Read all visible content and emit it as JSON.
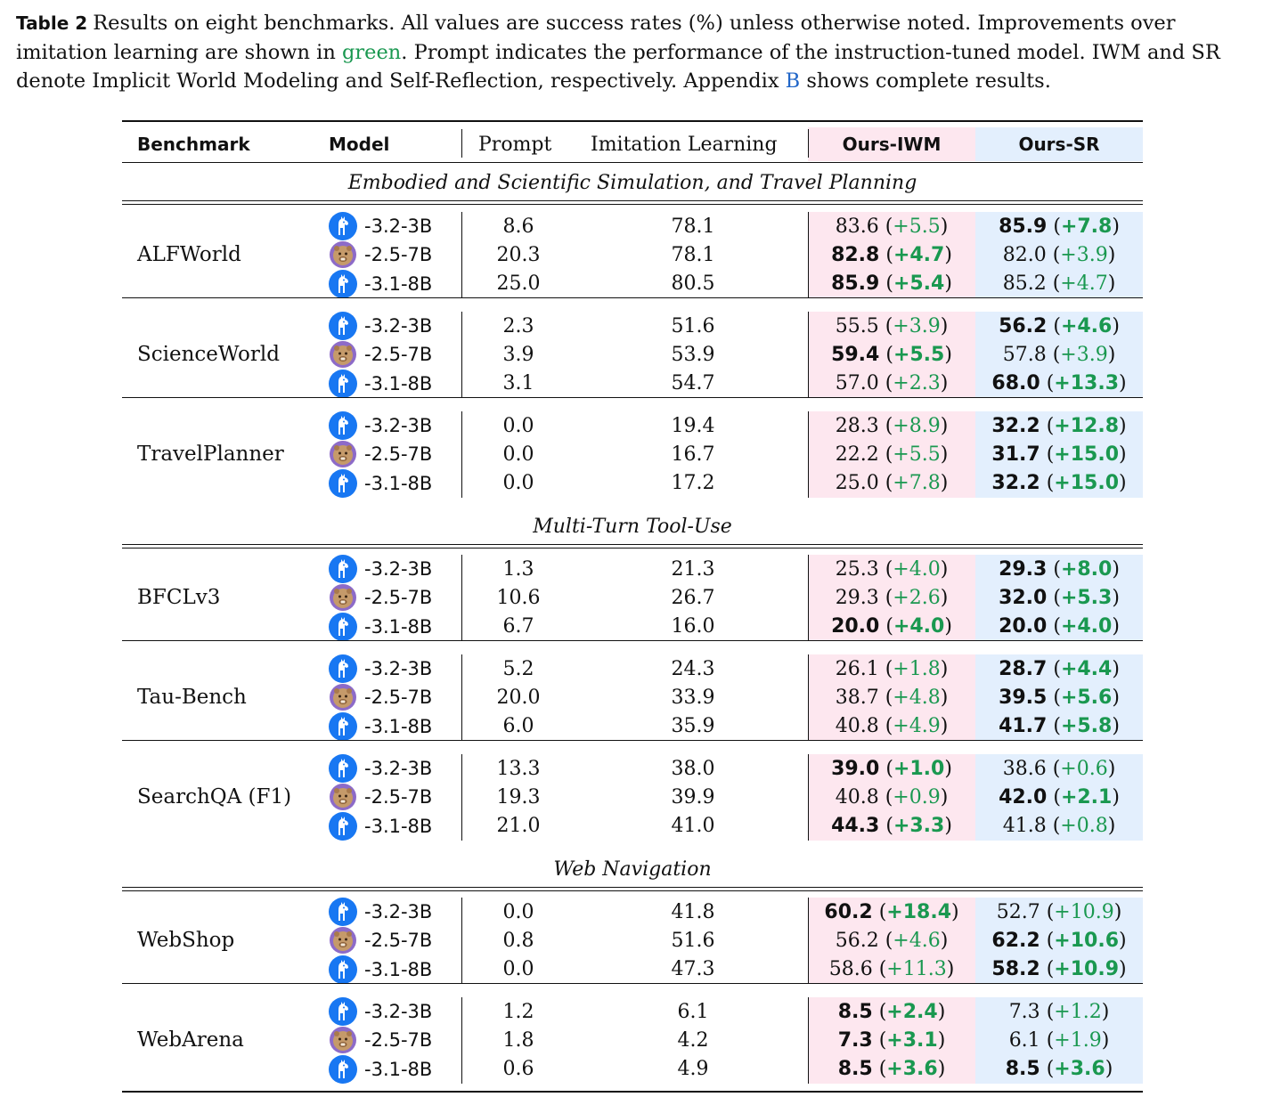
{
  "caption": {
    "label": "Table 2",
    "text_before": "Results on eight benchmarks. All values are success rates (%) unless otherwise noted. Improvements over imitation learning are shown in ",
    "green_word": "green",
    "text_middle": ". Prompt indicates the performance of the instruction-tuned model. IWM and SR denote Implicit World Modeling and Self-Reflection, respectively. Appendix ",
    "appendix_ref": "B",
    "text_after": " shows complete results."
  },
  "colors": {
    "green": "#1a9850",
    "iwm_bg": "#fde7ef",
    "sr_bg": "#e3effd",
    "llama_icon": "#1877f2",
    "qwen_icon": "#8d6bc8"
  },
  "header": {
    "benchmark": "Benchmark",
    "model": "Model",
    "prompt": "Prompt",
    "imitation": "Imitation Learning",
    "iwm": "Ours-IWM",
    "sr": "Ours-SR"
  },
  "sections": [
    {
      "title": "Embodied and Scientific Simulation, and Travel Planning",
      "benchmarks": [
        {
          "name": "ALFWorld",
          "rows": [
            {
              "icon": "llama-icon",
              "model": "-3.2-3B",
              "prompt": "8.6",
              "il": "78.1",
              "iwm": "83.6",
              "iwm_delta": "+5.5",
              "iwm_bold": false,
              "sr": "85.9",
              "sr_delta": "+7.8",
              "sr_bold": true
            },
            {
              "icon": "qwen-icon",
              "model": "-2.5-7B",
              "prompt": "20.3",
              "il": "78.1",
              "iwm": "82.8",
              "iwm_delta": "+4.7",
              "iwm_bold": true,
              "sr": "82.0",
              "sr_delta": "+3.9",
              "sr_bold": false
            },
            {
              "icon": "llama-icon",
              "model": "-3.1-8B",
              "prompt": "25.0",
              "il": "80.5",
              "iwm": "85.9",
              "iwm_delta": "+5.4",
              "iwm_bold": true,
              "sr": "85.2",
              "sr_delta": "+4.7",
              "sr_bold": false
            }
          ]
        },
        {
          "name": "ScienceWorld",
          "rows": [
            {
              "icon": "llama-icon",
              "model": "-3.2-3B",
              "prompt": "2.3",
              "il": "51.6",
              "iwm": "55.5",
              "iwm_delta": "+3.9",
              "iwm_bold": false,
              "sr": "56.2",
              "sr_delta": "+4.6",
              "sr_bold": true
            },
            {
              "icon": "qwen-icon",
              "model": "-2.5-7B",
              "prompt": "3.9",
              "il": "53.9",
              "iwm": "59.4",
              "iwm_delta": "+5.5",
              "iwm_bold": true,
              "sr": "57.8",
              "sr_delta": "+3.9",
              "sr_bold": false
            },
            {
              "icon": "llama-icon",
              "model": "-3.1-8B",
              "prompt": "3.1",
              "il": "54.7",
              "iwm": "57.0",
              "iwm_delta": "+2.3",
              "iwm_bold": false,
              "sr": "68.0",
              "sr_delta": "+13.3",
              "sr_bold": true
            }
          ]
        },
        {
          "name": "TravelPlanner",
          "rows": [
            {
              "icon": "llama-icon",
              "model": "-3.2-3B",
              "prompt": "0.0",
              "il": "19.4",
              "iwm": "28.3",
              "iwm_delta": "+8.9",
              "iwm_bold": false,
              "sr": "32.2",
              "sr_delta": "+12.8",
              "sr_bold": true
            },
            {
              "icon": "qwen-icon",
              "model": "-2.5-7B",
              "prompt": "0.0",
              "il": "16.7",
              "iwm": "22.2",
              "iwm_delta": "+5.5",
              "iwm_bold": false,
              "sr": "31.7",
              "sr_delta": "+15.0",
              "sr_bold": true
            },
            {
              "icon": "llama-icon",
              "model": "-3.1-8B",
              "prompt": "0.0",
              "il": "17.2",
              "iwm": "25.0",
              "iwm_delta": "+7.8",
              "iwm_bold": false,
              "sr": "32.2",
              "sr_delta": "+15.0",
              "sr_bold": true
            }
          ]
        }
      ]
    },
    {
      "title": "Multi-Turn Tool-Use",
      "benchmarks": [
        {
          "name": "BFCLv3",
          "rows": [
            {
              "icon": "llama-icon",
              "model": "-3.2-3B",
              "prompt": "1.3",
              "il": "21.3",
              "iwm": "25.3",
              "iwm_delta": "+4.0",
              "iwm_bold": false,
              "sr": "29.3",
              "sr_delta": "+8.0",
              "sr_bold": true
            },
            {
              "icon": "qwen-icon",
              "model": "-2.5-7B",
              "prompt": "10.6",
              "il": "26.7",
              "iwm": "29.3",
              "iwm_delta": "+2.6",
              "iwm_bold": false,
              "sr": "32.0",
              "sr_delta": "+5.3",
              "sr_bold": true
            },
            {
              "icon": "llama-icon",
              "model": "-3.1-8B",
              "prompt": "6.7",
              "il": "16.0",
              "iwm": "20.0",
              "iwm_delta": "+4.0",
              "iwm_bold": true,
              "sr": "20.0",
              "sr_delta": "+4.0",
              "sr_bold": true
            }
          ]
        },
        {
          "name": "Tau-Bench",
          "rows": [
            {
              "icon": "llama-icon",
              "model": "-3.2-3B",
              "prompt": "5.2",
              "il": "24.3",
              "iwm": "26.1",
              "iwm_delta": "+1.8",
              "iwm_bold": false,
              "sr": "28.7",
              "sr_delta": "+4.4",
              "sr_bold": true
            },
            {
              "icon": "qwen-icon",
              "model": "-2.5-7B",
              "prompt": "20.0",
              "il": "33.9",
              "iwm": "38.7",
              "iwm_delta": "+4.8",
              "iwm_bold": false,
              "sr": "39.5",
              "sr_delta": "+5.6",
              "sr_bold": true
            },
            {
              "icon": "llama-icon",
              "model": "-3.1-8B",
              "prompt": "6.0",
              "il": "35.9",
              "iwm": "40.8",
              "iwm_delta": "+4.9",
              "iwm_bold": false,
              "sr": "41.7",
              "sr_delta": "+5.8",
              "sr_bold": true
            }
          ]
        },
        {
          "name": "SearchQA (F1)",
          "rows": [
            {
              "icon": "llama-icon",
              "model": "-3.2-3B",
              "prompt": "13.3",
              "il": "38.0",
              "iwm": "39.0",
              "iwm_delta": "+1.0",
              "iwm_bold": true,
              "sr": "38.6",
              "sr_delta": "+0.6",
              "sr_bold": false
            },
            {
              "icon": "qwen-icon",
              "model": "-2.5-7B",
              "prompt": "19.3",
              "il": "39.9",
              "iwm": "40.8",
              "iwm_delta": "+0.9",
              "iwm_bold": false,
              "sr": "42.0",
              "sr_delta": "+2.1",
              "sr_bold": true
            },
            {
              "icon": "llama-icon",
              "model": "-3.1-8B",
              "prompt": "21.0",
              "il": "41.0",
              "iwm": "44.3",
              "iwm_delta": "+3.3",
              "iwm_bold": true,
              "sr": "41.8",
              "sr_delta": "+0.8",
              "sr_bold": false
            }
          ]
        }
      ]
    },
    {
      "title": "Web Navigation",
      "benchmarks": [
        {
          "name": "WebShop",
          "rows": [
            {
              "icon": "llama-icon",
              "model": "-3.2-3B",
              "prompt": "0.0",
              "il": "41.8",
              "iwm": "60.2",
              "iwm_delta": "+18.4",
              "iwm_bold": true,
              "sr": "52.7",
              "sr_delta": "+10.9",
              "sr_bold": false
            },
            {
              "icon": "qwen-icon",
              "model": "-2.5-7B",
              "prompt": "0.8",
              "il": "51.6",
              "iwm": "56.2",
              "iwm_delta": "+4.6",
              "iwm_bold": false,
              "sr": "62.2",
              "sr_delta": "+10.6",
              "sr_bold": true
            },
            {
              "icon": "llama-icon",
              "model": "-3.1-8B",
              "prompt": "0.0",
              "il": "47.3",
              "iwm": "58.6",
              "iwm_delta": "+11.3",
              "iwm_bold": false,
              "sr": "58.2",
              "sr_delta": "+10.9",
              "sr_bold": true
            }
          ]
        },
        {
          "name": "WebArena",
          "rows": [
            {
              "icon": "llama-icon",
              "model": "-3.2-3B",
              "prompt": "1.2",
              "il": "6.1",
              "iwm": "8.5",
              "iwm_delta": "+2.4",
              "iwm_bold": true,
              "sr": "7.3",
              "sr_delta": "+1.2",
              "sr_bold": false
            },
            {
              "icon": "qwen-icon",
              "model": "-2.5-7B",
              "prompt": "1.8",
              "il": "4.2",
              "iwm": "7.3",
              "iwm_delta": "+3.1",
              "iwm_bold": true,
              "sr": "6.1",
              "sr_delta": "+1.9",
              "sr_bold": false
            },
            {
              "icon": "llama-icon",
              "model": "-3.1-8B",
              "prompt": "0.6",
              "il": "4.9",
              "iwm": "8.5",
              "iwm_delta": "+3.6",
              "iwm_bold": true,
              "sr": "8.5",
              "sr_delta": "+3.6",
              "sr_bold": true
            }
          ]
        }
      ]
    }
  ]
}
